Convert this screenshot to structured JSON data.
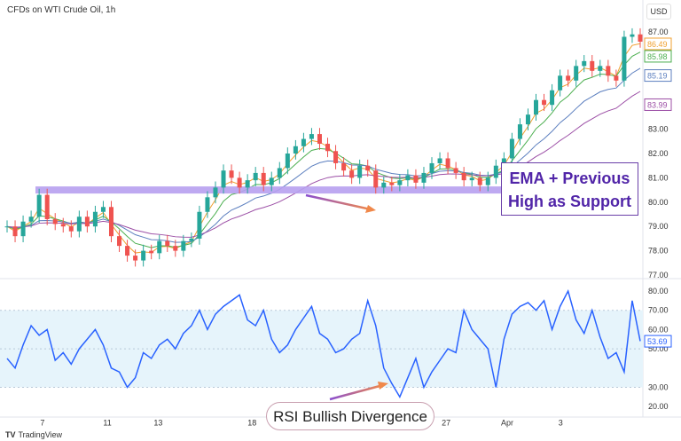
{
  "header": {
    "title": "CFDs on WTI Crude Oil, 1h",
    "currency": "USD"
  },
  "annotations": {
    "support_box": "EMA + Previous\nHigh as Support",
    "support_line1": "EMA + Previous",
    "support_line2": "High as Support",
    "rsi_label": "RSI Bullish Divergence"
  },
  "footer": {
    "brand": "TradingView",
    "logo": "TV"
  },
  "colors": {
    "up": "#26a69a",
    "down": "#ef5350",
    "ema_fast": "#f0a030",
    "ema_mid": "#4caf50",
    "ema_slow": "#5c7fbf",
    "ema_long": "#9c4fa6",
    "rsi": "#2962ff",
    "band": "#b7a0f0"
  },
  "chart_data": [
    {
      "type": "candlestick",
      "title": "CFDs on WTI Crude Oil, 1h",
      "ylim": [
        76.8,
        87.4
      ],
      "y_ticks": [
        "87.00",
        "83.00",
        "82.00",
        "81.00",
        "80.00",
        "79.00",
        "78.00",
        "77.00"
      ],
      "y_tick_values": [
        87,
        83,
        82,
        81,
        80,
        79,
        78,
        77
      ],
      "price_labels": [
        {
          "value": "86.49",
          "num": 86.49,
          "color": "#f0a030"
        },
        {
          "value": "85.98",
          "num": 85.98,
          "color": "#4caf50"
        },
        {
          "value": "85.19",
          "num": 85.19,
          "color": "#5c7fbf"
        },
        {
          "value": "83.99",
          "num": 83.99,
          "color": "#9c4fa6"
        }
      ],
      "x_ticks": [
        {
          "label": "7",
          "pos": 0.066
        },
        {
          "label": "11",
          "pos": 0.167
        },
        {
          "label": "13",
          "pos": 0.246
        },
        {
          "label": "18",
          "pos": 0.392
        },
        {
          "label": "27",
          "pos": 0.694
        },
        {
          "label": "Apr",
          "pos": 0.789
        },
        {
          "label": "3",
          "pos": 0.872
        }
      ],
      "closes": [
        79.0,
        78.6,
        79.2,
        79.4,
        80.3,
        79.3,
        79.1,
        79.0,
        78.8,
        79.4,
        79.0,
        79.6,
        79.8,
        78.6,
        78.2,
        77.8,
        77.6,
        78.0,
        77.9,
        78.4,
        78.2,
        78.0,
        78.4,
        78.5,
        79.6,
        80.2,
        80.6,
        81.3,
        81.0,
        80.6,
        80.9,
        81.2,
        80.7,
        81.0,
        81.4,
        82.0,
        82.3,
        82.6,
        82.8,
        82.4,
        82.1,
        81.6,
        81.3,
        81.0,
        81.5,
        81.3,
        80.6,
        80.8,
        80.7,
        80.9,
        81.1,
        80.8,
        81.2,
        81.6,
        81.8,
        81.4,
        81.2,
        80.9,
        81.0,
        80.7,
        81.0,
        81.5,
        81.8,
        82.6,
        83.2,
        83.6,
        84.2,
        84.0,
        84.6,
        85.2,
        85.0,
        85.6,
        85.8,
        85.4,
        85.6,
        85.2,
        85.0,
        86.8,
        86.9,
        86.6
      ],
      "support_level": 80.5
    },
    {
      "type": "line",
      "name": "RSI",
      "ylim": [
        20,
        80
      ],
      "y_ticks": [
        "80.00",
        "70.00",
        "60.00",
        "50.00",
        "30.00",
        "20.00"
      ],
      "y_tick_values": [
        80,
        70,
        60,
        50,
        30,
        20
      ],
      "band": [
        30,
        70
      ],
      "last_value": "53.69",
      "values": [
        45,
        40,
        52,
        62,
        57,
        60,
        44,
        48,
        42,
        50,
        55,
        60,
        52,
        40,
        38,
        30,
        35,
        48,
        45,
        52,
        55,
        50,
        58,
        62,
        70,
        60,
        68,
        72,
        75,
        78,
        65,
        62,
        70,
        55,
        48,
        52,
        60,
        66,
        72,
        58,
        55,
        48,
        50,
        55,
        58,
        75,
        62,
        40,
        32,
        25,
        35,
        45,
        30,
        38,
        44,
        50,
        48,
        70,
        60,
        55,
        50,
        30,
        55,
        68,
        72,
        74,
        70,
        75,
        60,
        72,
        80,
        65,
        58,
        70,
        56,
        45,
        48,
        38,
        75,
        54
      ]
    }
  ]
}
